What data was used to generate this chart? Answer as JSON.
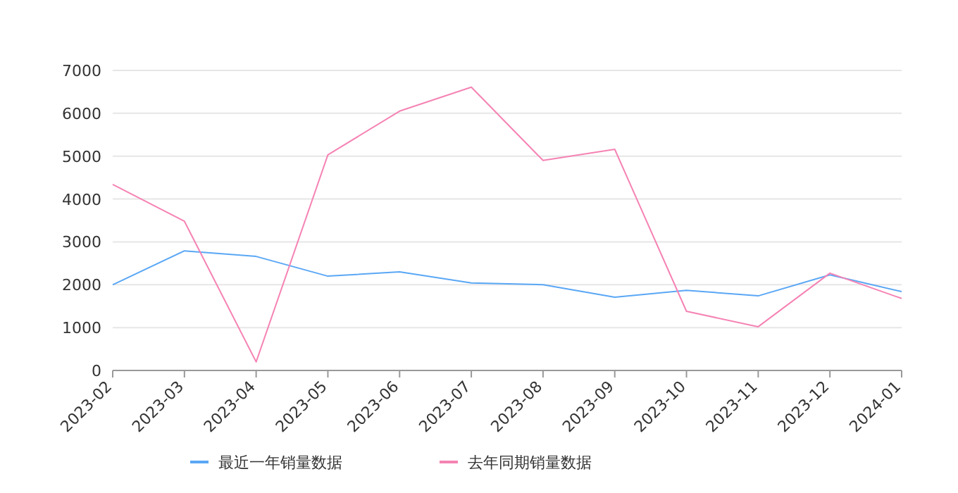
{
  "chart_data": {
    "type": "line",
    "categories": [
      "2023-02",
      "2023-03",
      "2023-04",
      "2023-05",
      "2023-06",
      "2023-07",
      "2023-08",
      "2023-09",
      "2023-10",
      "2023-11",
      "2023-12",
      "2024-01"
    ],
    "series": [
      {
        "name": "最近一年销量数据",
        "color": "#5aa7f5",
        "values": [
          2000,
          2790,
          2660,
          2200,
          2300,
          2040,
          2000,
          1710,
          1870,
          1740,
          2230,
          1840
        ]
      },
      {
        "name": "去年同期销量数据",
        "color": "#f583b4",
        "values": [
          4340,
          3480,
          200,
          5030,
          6050,
          6610,
          4900,
          5160,
          1380,
          1020,
          2270,
          1680
        ]
      }
    ],
    "ylim": [
      0,
      7000
    ],
    "yticks": [
      0,
      1000,
      2000,
      3000,
      4000,
      5000,
      6000,
      7000
    ],
    "grid": "y",
    "legend": "bottom",
    "marker": "none",
    "line_style": "solid"
  }
}
